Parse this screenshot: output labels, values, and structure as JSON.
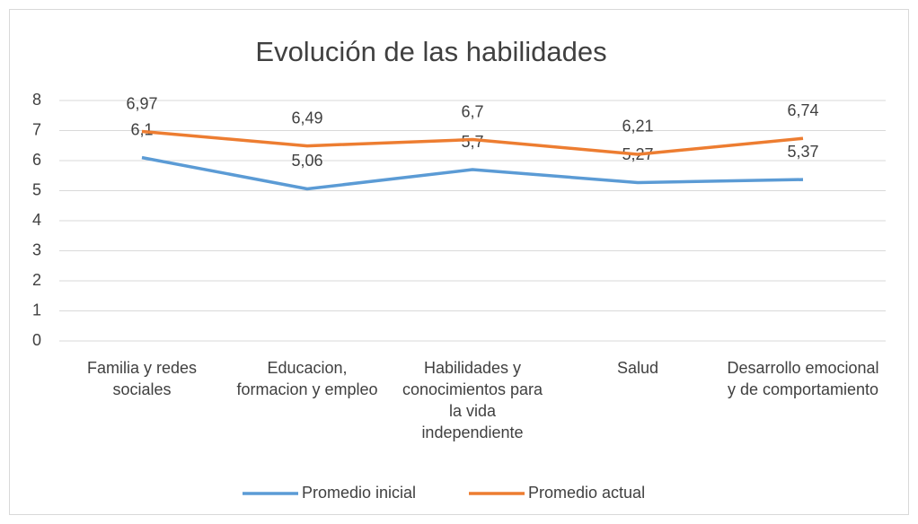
{
  "chart_data": {
    "type": "line",
    "title": "Evolución de las habilidades",
    "categories": [
      "Familia y redes sociales",
      "Educacion, formacion y empleo",
      "Habilidades y conocimientos para la vida independiente",
      "Salud",
      "Desarrollo emocional y de comportamiento"
    ],
    "series": [
      {
        "name": "Promedio inicial",
        "color": "#5b9bd5",
        "values": [
          6.1,
          5.06,
          5.7,
          5.27,
          5.37
        ],
        "value_labels": [
          "6,1",
          "5,06",
          "5,7",
          "5,27",
          "5,37"
        ]
      },
      {
        "name": "Promedio actual",
        "color": "#ed7d31",
        "values": [
          6.97,
          6.49,
          6.7,
          6.21,
          6.74
        ],
        "value_labels": [
          "6,97",
          "6,49",
          "6,7",
          "6,21",
          "6,74"
        ]
      }
    ],
    "ylim": [
      0,
      8
    ],
    "yticks": [
      0,
      1,
      2,
      3,
      4,
      5,
      6,
      7,
      8
    ],
    "grid": true,
    "legend": "bottom"
  }
}
